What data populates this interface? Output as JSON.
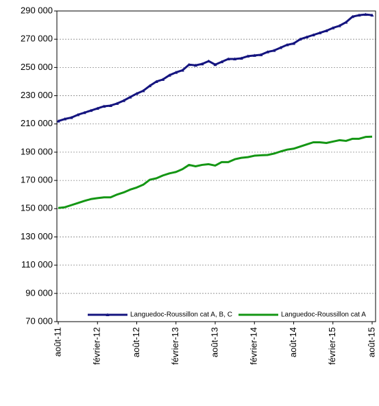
{
  "chart_data": {
    "type": "line",
    "categories": [
      "août-11",
      null,
      null,
      null,
      null,
      null,
      "février-12",
      null,
      null,
      null,
      null,
      null,
      "août-12",
      null,
      null,
      null,
      null,
      null,
      "février-13",
      null,
      null,
      null,
      null,
      null,
      "août-13",
      null,
      null,
      null,
      null,
      null,
      "février-14",
      null,
      null,
      null,
      null,
      null,
      "août-14",
      null,
      null,
      null,
      null,
      null,
      "février-15",
      null,
      null,
      null,
      null,
      null,
      "août-15"
    ],
    "series": [
      {
        "name": "Languedoc-Roussillon cat A, B, C",
        "color": "#14147f",
        "marker": true,
        "values": [
          212000,
          213500,
          214500,
          216500,
          218000,
          219500,
          221000,
          222500,
          223000,
          224500,
          226500,
          229000,
          231500,
          233500,
          237000,
          240000,
          241500,
          244500,
          246500,
          248000,
          252000,
          251500,
          252500,
          254500,
          252000,
          254000,
          256000,
          256000,
          256500,
          258000,
          258500,
          259000,
          261000,
          262000,
          264000,
          266000,
          267000,
          270000,
          271500,
          273000,
          274500,
          276000,
          278000,
          279500,
          282000,
          286000,
          287000,
          287500,
          287000
        ]
      },
      {
        "name": "Languedoc-Roussillon cat A",
        "color": "#149614",
        "marker": false,
        "values": [
          150500,
          151000,
          152500,
          154000,
          155500,
          156800,
          157500,
          158000,
          158000,
          160000,
          161500,
          163500,
          165000,
          167000,
          170500,
          171500,
          173500,
          175000,
          176000,
          178000,
          181000,
          180000,
          181000,
          181500,
          180500,
          183000,
          183000,
          185000,
          186000,
          186500,
          187500,
          187800,
          188000,
          189000,
          190500,
          191800,
          192500,
          194000,
          195500,
          197000,
          197000,
          196500,
          197500,
          198500,
          198000,
          199500,
          199500,
          200800,
          201000
        ]
      }
    ],
    "ylim": [
      70000,
      290000
    ],
    "yticks": [
      {
        "value": 70000,
        "label": "70 000"
      },
      {
        "value": 90000,
        "label": "90 000"
      },
      {
        "value": 110000,
        "label": "110 000"
      },
      {
        "value": 130000,
        "label": "130 000"
      },
      {
        "value": 150000,
        "label": "150 000"
      },
      {
        "value": 170000,
        "label": "170 000"
      },
      {
        "value": 190000,
        "label": "190 000"
      },
      {
        "value": 210000,
        "label": "210 000"
      },
      {
        "value": 230000,
        "label": "230 000"
      },
      {
        "value": 250000,
        "label": "250 000"
      },
      {
        "value": 270000,
        "label": "270 000"
      },
      {
        "value": 290000,
        "label": "290 000"
      }
    ],
    "grid": true,
    "legend": "bottom"
  }
}
